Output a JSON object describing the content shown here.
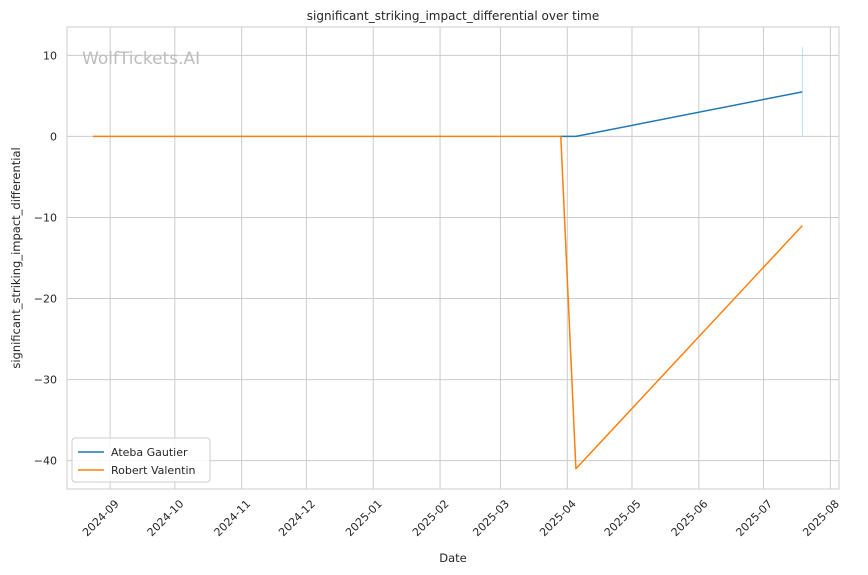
{
  "chart_data": {
    "type": "line",
    "title": "significant_striking_impact_differential over time",
    "xlabel": "Date",
    "ylabel": "significant_striking_impact_differential",
    "watermark": "WolfTickets.AI",
    "xlim": [
      "2024-08-12",
      "2025-08-05"
    ],
    "ylim": [
      -43.5,
      13.5
    ],
    "x_ticks": [
      "2024-09-01",
      "2024-10-01",
      "2024-11-01",
      "2024-12-01",
      "2025-01-01",
      "2025-02-01",
      "2025-03-01",
      "2025-04-01",
      "2025-05-01",
      "2025-06-01",
      "2025-07-01",
      "2025-08-01"
    ],
    "x_tick_labels": [
      "2024-09",
      "2024-10",
      "2024-11",
      "2024-12",
      "2025-01",
      "2025-02",
      "2025-03",
      "2025-04",
      "2025-05",
      "2025-06",
      "2025-07",
      "2025-08"
    ],
    "y_ticks": [
      10,
      0,
      -10,
      -20,
      -30,
      -40
    ],
    "y_tick_labels": [
      "10",
      "0",
      "−10",
      "−20",
      "−30",
      "−40"
    ],
    "grid": true,
    "legend_position": "lower-left",
    "series": [
      {
        "name": "Ateba Gautier",
        "color": "#1f77b4",
        "points": [
          {
            "x": "2025-03-29",
            "y": 0
          },
          {
            "x": "2025-04-05",
            "y": 0
          },
          {
            "x": "2025-07-19",
            "y": 5.5
          }
        ]
      },
      {
        "name": "Robert Valentin",
        "color": "#ff7f0e",
        "points": [
          {
            "x": "2024-08-24",
            "y": 0
          },
          {
            "x": "2025-03-29",
            "y": 0
          },
          {
            "x": "2025-04-05",
            "y": -41
          },
          {
            "x": "2025-07-19",
            "y": -11
          }
        ]
      }
    ],
    "faint_vertical_line": {
      "x": "2025-07-19",
      "y_range": [
        0,
        11
      ],
      "color": "#9ecae1"
    }
  }
}
